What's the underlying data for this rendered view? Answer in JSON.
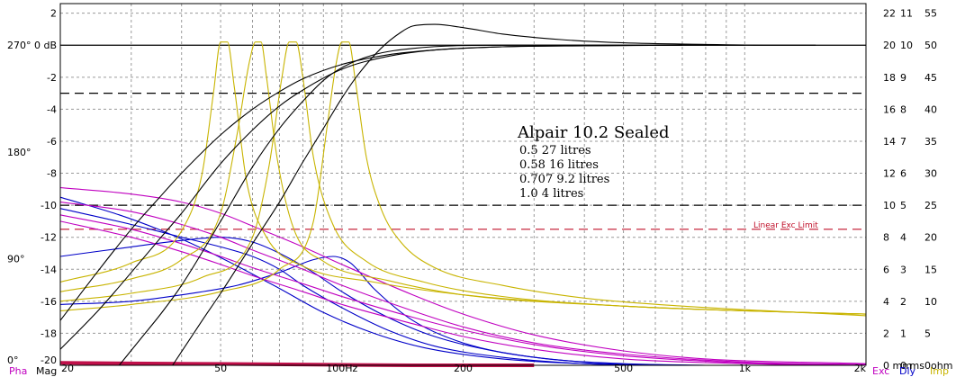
{
  "chart_data": {
    "type": "line",
    "title": "Alpair 10.2 Sealed",
    "annotation_lines": [
      "0.5  27 litres",
      "0.58 16 litres",
      "0.707 9.2 litres",
      "1.0 4 litres"
    ],
    "x_scale": "log",
    "xlim": [
      20,
      2000
    ],
    "x_ticks": [
      {
        "v": 20,
        "label": "20"
      },
      {
        "v": 50,
        "label": "50"
      },
      {
        "v": 100,
        "label": "100Hz"
      },
      {
        "v": 200,
        "label": "200"
      },
      {
        "v": 500,
        "label": "500"
      },
      {
        "v": 1000,
        "label": "1k"
      },
      {
        "v": 2000,
        "label": "2k"
      }
    ],
    "ylim_mag": [
      -20,
      2.6
    ],
    "mag_ticks": [
      {
        "v": 2,
        "label": "2"
      },
      {
        "v": 0,
        "label": "0 dB"
      },
      {
        "v": -2,
        "label": "-2"
      },
      {
        "v": -4,
        "label": "-4"
      },
      {
        "v": -6,
        "label": "-6"
      },
      {
        "v": -8,
        "label": "-8"
      },
      {
        "v": -10,
        "label": "-10"
      },
      {
        "v": -12,
        "label": "-12"
      },
      {
        "v": -14,
        "label": "-14"
      },
      {
        "v": -16,
        "label": "-16"
      },
      {
        "v": -18,
        "label": "-18"
      },
      {
        "v": -20,
        "label": "-20"
      }
    ],
    "pha_ticks": [
      {
        "v": 270,
        "label": "270°"
      },
      {
        "v": 180,
        "label": "180°"
      },
      {
        "v": 90,
        "label": "90°"
      },
      {
        "v": 0,
        "label": "0°"
      }
    ],
    "exc_ticks": [
      {
        "v": 22,
        "label": "22"
      },
      {
        "v": 20,
        "label": "20"
      },
      {
        "v": 18,
        "label": "18"
      },
      {
        "v": 16,
        "label": "16"
      },
      {
        "v": 14,
        "label": "14"
      },
      {
        "v": 12,
        "label": "12"
      },
      {
        "v": 10,
        "label": "10"
      },
      {
        "v": 8,
        "label": "8"
      },
      {
        "v": 6,
        "label": "6"
      },
      {
        "v": 4,
        "label": "4"
      },
      {
        "v": 2,
        "label": "2"
      },
      {
        "v": 0,
        "label": "0 mm"
      }
    ],
    "dly_ticks": [
      {
        "v": 11,
        "label": "11"
      },
      {
        "v": 10,
        "label": "10"
      },
      {
        "v": 9,
        "label": "9"
      },
      {
        "v": 8,
        "label": "8"
      },
      {
        "v": 7,
        "label": "7"
      },
      {
        "v": 6,
        "label": "6"
      },
      {
        "v": 5,
        "label": "5"
      },
      {
        "v": 4,
        "label": "4"
      },
      {
        "v": 3,
        "label": "3"
      },
      {
        "v": 2,
        "label": "2"
      },
      {
        "v": 1,
        "label": "1"
      },
      {
        "v": 0,
        "label": "0 ms"
      }
    ],
    "imp_ticks": [
      {
        "v": 55,
        "label": "55"
      },
      {
        "v": 50,
        "label": "50"
      },
      {
        "v": 45,
        "label": "45"
      },
      {
        "v": 40,
        "label": "40"
      },
      {
        "v": 35,
        "label": "35"
      },
      {
        "v": 30,
        "label": "30"
      },
      {
        "v": 25,
        "label": "25"
      },
      {
        "v": 20,
        "label": "20"
      },
      {
        "v": 15,
        "label": "15"
      },
      {
        "v": 10,
        "label": "10"
      },
      {
        "v": 5,
        "label": "5"
      },
      {
        "v": 0,
        "label": "0ohm"
      }
    ],
    "axis_names": {
      "pha": "Pha",
      "mag": "Mag",
      "exc": "Exc",
      "dly": "Dly",
      "imp": "Imp"
    },
    "reference_lines": [
      {
        "y_mag": -3,
        "style": "dashed",
        "color": "#000000"
      },
      {
        "y_mag": -10,
        "style": "dashed",
        "color": "#000000"
      },
      {
        "y_mag": -11.5,
        "style": "dashed",
        "color": "#c0102a",
        "label": "Linear Exc Limit"
      }
    ],
    "colors": {
      "magnitude": "#000000",
      "impedance": "#c8b400",
      "excursion": "#c000c0",
      "phase": "#0000c8",
      "delay": "#c0104a",
      "grid": "#9a9a9a"
    },
    "series": [
      {
        "kind": "magnitude",
        "points": [
          [
            20,
            -17.2
          ],
          [
            25,
            -14.0
          ],
          [
            30,
            -11.5
          ],
          [
            35,
            -9.6
          ],
          [
            40,
            -8.0
          ],
          [
            50,
            -5.6
          ],
          [
            60,
            -4.0
          ],
          [
            70,
            -2.9
          ],
          [
            80,
            -2.1
          ],
          [
            100,
            -1.2
          ],
          [
            130,
            -0.6
          ],
          [
            170,
            -0.3
          ],
          [
            250,
            -0.1
          ],
          [
            400,
            -0.04
          ],
          [
            700,
            0
          ]
        ]
      },
      {
        "kind": "magnitude",
        "points": [
          [
            20,
            -19.0
          ],
          [
            25,
            -16.5
          ],
          [
            30,
            -14.2
          ],
          [
            35,
            -12.2
          ],
          [
            40,
            -10.5
          ],
          [
            50,
            -7.4
          ],
          [
            60,
            -5.3
          ],
          [
            70,
            -3.8
          ],
          [
            80,
            -2.8
          ],
          [
            100,
            -1.5
          ],
          [
            130,
            -0.7
          ],
          [
            170,
            -0.3
          ],
          [
            250,
            -0.1
          ],
          [
            400,
            -0.03
          ],
          [
            700,
            0
          ]
        ]
      },
      {
        "kind": "magnitude",
        "points": [
          [
            28,
            -20
          ],
          [
            32,
            -18.2
          ],
          [
            36,
            -16.6
          ],
          [
            40,
            -15.0
          ],
          [
            50,
            -11.0
          ],
          [
            60,
            -7.6
          ],
          [
            70,
            -5.2
          ],
          [
            80,
            -3.5
          ],
          [
            90,
            -2.2
          ],
          [
            100,
            -1.4
          ],
          [
            120,
            -0.6
          ],
          [
            150,
            -0.2
          ],
          [
            250,
            0
          ],
          [
            500,
            0
          ],
          [
            1000,
            0
          ]
        ]
      },
      {
        "kind": "magnitude",
        "points": [
          [
            38,
            -20
          ],
          [
            45,
            -17.2
          ],
          [
            50,
            -15.5
          ],
          [
            60,
            -12.4
          ],
          [
            70,
            -9.8
          ],
          [
            80,
            -7.3
          ],
          [
            90,
            -5.2
          ],
          [
            100,
            -3.3
          ],
          [
            110,
            -1.8
          ],
          [
            125,
            -0.2
          ],
          [
            140,
            0.8
          ],
          [
            150,
            1.2
          ],
          [
            170,
            1.3
          ],
          [
            200,
            1.1
          ],
          [
            250,
            0.7
          ],
          [
            350,
            0.35
          ],
          [
            500,
            0.15
          ],
          [
            800,
            0.05
          ],
          [
            1200,
            0
          ],
          [
            1500,
            0
          ]
        ]
      },
      {
        "kind": "impedance",
        "points": [
          [
            20,
            -14.8
          ],
          [
            30,
            -13.6
          ],
          [
            40,
            -11.6
          ],
          [
            45,
            -8.0
          ],
          [
            48,
            -3.0
          ],
          [
            50,
            0.2
          ],
          [
            52,
            0.2
          ],
          [
            54,
            -2.5
          ],
          [
            58,
            -8.5
          ],
          [
            65,
            -12.0
          ],
          [
            80,
            -13.8
          ],
          [
            120,
            -14.8
          ],
          [
            200,
            -15.6
          ],
          [
            500,
            -16.3
          ],
          [
            1000,
            -16.6
          ],
          [
            2000,
            -16.8
          ]
        ]
      },
      {
        "kind": "impedance",
        "points": [
          [
            20,
            -15.4
          ],
          [
            30,
            -14.6
          ],
          [
            40,
            -13.4
          ],
          [
            50,
            -10.5
          ],
          [
            55,
            -5.5
          ],
          [
            59,
            -1.0
          ],
          [
            61,
            0.2
          ],
          [
            63,
            0.2
          ],
          [
            65,
            -2.0
          ],
          [
            69,
            -7.0
          ],
          [
            76,
            -11.5
          ],
          [
            90,
            -13.5
          ],
          [
            130,
            -14.7
          ],
          [
            200,
            -15.6
          ],
          [
            500,
            -16.3
          ],
          [
            1000,
            -16.6
          ],
          [
            2000,
            -16.8
          ]
        ]
      },
      {
        "kind": "impedance",
        "points": [
          [
            20,
            -16.0
          ],
          [
            30,
            -15.5
          ],
          [
            45,
            -14.5
          ],
          [
            60,
            -12.0
          ],
          [
            66,
            -7.5
          ],
          [
            71,
            -2.0
          ],
          [
            74,
            0.2
          ],
          [
            77,
            0.2
          ],
          [
            80,
            -2.0
          ],
          [
            85,
            -7.0
          ],
          [
            95,
            -11.2
          ],
          [
            115,
            -13.5
          ],
          [
            160,
            -14.8
          ],
          [
            250,
            -15.7
          ],
          [
            500,
            -16.3
          ],
          [
            1000,
            -16.6
          ],
          [
            2000,
            -16.8
          ]
        ]
      },
      {
        "kind": "impedance",
        "points": [
          [
            20,
            -16.6
          ],
          [
            30,
            -16.2
          ],
          [
            50,
            -15.4
          ],
          [
            70,
            -14.0
          ],
          [
            85,
            -11.0
          ],
          [
            92,
            -5.0
          ],
          [
            97,
            -1.0
          ],
          [
            100,
            0.2
          ],
          [
            104,
            0.2
          ],
          [
            108,
            -2.2
          ],
          [
            115,
            -7.0
          ],
          [
            125,
            -10.2
          ],
          [
            140,
            -12.3
          ],
          [
            170,
            -13.9
          ],
          [
            250,
            -15.0
          ],
          [
            400,
            -15.8
          ],
          [
            700,
            -16.3
          ],
          [
            2000,
            -16.9
          ]
        ]
      },
      {
        "kind": "excursion",
        "points": [
          [
            20,
            -8.9
          ],
          [
            30,
            -9.3
          ],
          [
            40,
            -9.8
          ],
          [
            50,
            -10.5
          ],
          [
            60,
            -11.3
          ],
          [
            80,
            -12.6
          ],
          [
            100,
            -13.7
          ],
          [
            150,
            -15.6
          ],
          [
            200,
            -16.8
          ],
          [
            300,
            -18.1
          ],
          [
            500,
            -19.1
          ],
          [
            800,
            -19.6
          ],
          [
            2000,
            -19.9
          ]
        ]
      },
      {
        "kind": "excursion",
        "points": [
          [
            20,
            -9.8
          ],
          [
            30,
            -10.4
          ],
          [
            40,
            -11.2
          ],
          [
            50,
            -12.0
          ],
          [
            60,
            -12.8
          ],
          [
            80,
            -14.0
          ],
          [
            100,
            -15.0
          ],
          [
            150,
            -16.6
          ],
          [
            200,
            -17.6
          ],
          [
            300,
            -18.6
          ],
          [
            500,
            -19.3
          ],
          [
            1000,
            -19.8
          ],
          [
            2000,
            -19.95
          ]
        ]
      },
      {
        "kind": "excursion",
        "points": [
          [
            20,
            -10.6
          ],
          [
            30,
            -11.5
          ],
          [
            40,
            -12.4
          ],
          [
            50,
            -13.2
          ],
          [
            60,
            -13.9
          ],
          [
            80,
            -14.9
          ],
          [
            100,
            -15.7
          ],
          [
            150,
            -17.0
          ],
          [
            200,
            -17.8
          ],
          [
            300,
            -18.7
          ],
          [
            500,
            -19.4
          ],
          [
            1000,
            -19.85
          ],
          [
            2000,
            -20
          ]
        ]
      },
      {
        "kind": "excursion",
        "points": [
          [
            20,
            -11.0
          ],
          [
            30,
            -12.0
          ],
          [
            40,
            -12.9
          ],
          [
            50,
            -13.7
          ],
          [
            60,
            -14.4
          ],
          [
            80,
            -15.4
          ],
          [
            100,
            -16.2
          ],
          [
            150,
            -17.4
          ],
          [
            200,
            -18.2
          ],
          [
            300,
            -19.0
          ],
          [
            500,
            -19.6
          ],
          [
            1000,
            -19.9
          ],
          [
            2000,
            -20
          ]
        ]
      },
      {
        "kind": "phase",
        "points": [
          [
            20,
            -9.5
          ],
          [
            28,
            -10.6
          ],
          [
            35,
            -11.5
          ],
          [
            45,
            -12.7
          ],
          [
            55,
            -13.8
          ],
          [
            70,
            -15.2
          ],
          [
            90,
            -16.7
          ],
          [
            120,
            -18.0
          ],
          [
            160,
            -18.9
          ],
          [
            250,
            -19.6
          ],
          [
            400,
            -19.9
          ],
          [
            600,
            -20
          ]
        ]
      },
      {
        "kind": "phase",
        "points": [
          [
            20,
            -10.2
          ],
          [
            30,
            -11.2
          ],
          [
            40,
            -12.0
          ],
          [
            50,
            -12.6
          ],
          [
            60,
            -13.2
          ],
          [
            70,
            -14.0
          ],
          [
            80,
            -15.0
          ],
          [
            100,
            -16.4
          ],
          [
            130,
            -17.8
          ],
          [
            170,
            -18.8
          ],
          [
            250,
            -19.5
          ],
          [
            400,
            -19.9
          ],
          [
            700,
            -20
          ]
        ]
      },
      {
        "kind": "phase",
        "points": [
          [
            20,
            -13.2
          ],
          [
            30,
            -12.6
          ],
          [
            40,
            -12.2
          ],
          [
            50,
            -12.0
          ],
          [
            60,
            -12.3
          ],
          [
            70,
            -13.0
          ],
          [
            85,
            -14.2
          ],
          [
            100,
            -15.4
          ],
          [
            130,
            -17.0
          ],
          [
            170,
            -18.2
          ],
          [
            250,
            -19.2
          ],
          [
            400,
            -19.8
          ],
          [
            700,
            -20
          ]
        ]
      },
      {
        "kind": "phase",
        "points": [
          [
            20,
            -16.2
          ],
          [
            30,
            -16.0
          ],
          [
            40,
            -15.6
          ],
          [
            55,
            -15.0
          ],
          [
            70,
            -14.2
          ],
          [
            85,
            -13.4
          ],
          [
            95,
            -13.2
          ],
          [
            105,
            -13.6
          ],
          [
            120,
            -15.2
          ],
          [
            150,
            -17.2
          ],
          [
            200,
            -18.6
          ],
          [
            300,
            -19.5
          ],
          [
            500,
            -19.9
          ],
          [
            800,
            -20
          ]
        ]
      },
      {
        "kind": "delay",
        "points": [
          [
            20,
            -19.85
          ],
          [
            40,
            -19.9
          ],
          [
            80,
            -19.95
          ],
          [
            150,
            -20
          ],
          [
            300,
            -20
          ]
        ]
      }
    ]
  }
}
